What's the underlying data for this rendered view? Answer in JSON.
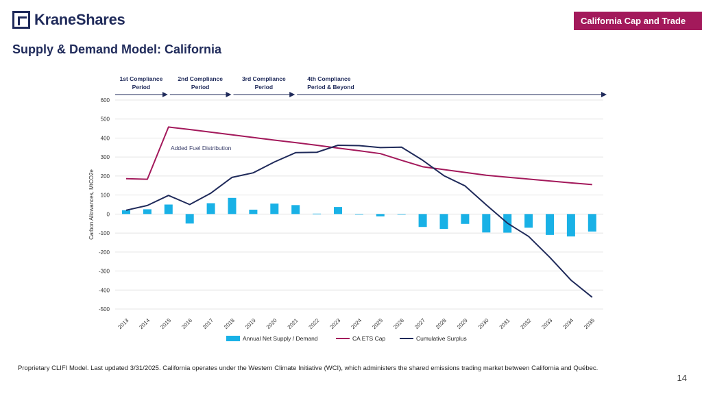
{
  "header": {
    "logo_text": "KraneShares",
    "badge": "California Cap and Trade",
    "title": "Supply & Demand Model: California"
  },
  "footnote": "Proprietary CLIFI Model. Last updated 3/31/2025. California operates under the Western Climate Initiative (WCI), which administers the shared emissions trading market between California and Québec.",
  "page_number": "14",
  "periods": [
    {
      "lines": [
        "1st Compliance",
        "Period"
      ],
      "start": 2013,
      "end": 2015
    },
    {
      "lines": [
        "2nd Compliance",
        "Period"
      ],
      "start": 2015,
      "end": 2018
    },
    {
      "lines": [
        "3rd Compliance",
        "Period"
      ],
      "start": 2018,
      "end": 2021
    },
    {
      "lines": [
        "4th Compliance",
        "Period & Beyond"
      ],
      "start": 2021,
      "end": 2035
    }
  ],
  "chart_data": {
    "type": "bar+line",
    "ylabel": "Carbon Allowances, MtCO2e",
    "ylim": [
      -500,
      600
    ],
    "yticks": [
      600,
      500,
      400,
      300,
      200,
      100,
      0,
      -100,
      -200,
      -300,
      -400,
      -500
    ],
    "categories": [
      "2013",
      "2014",
      "2015",
      "2016",
      "2017",
      "2018",
      "2019",
      "2020",
      "2021",
      "2022",
      "2023",
      "2024",
      "2025",
      "2026",
      "2027",
      "2028",
      "2029",
      "2030",
      "2031",
      "2032",
      "2033",
      "2034",
      "2035"
    ],
    "annotation": "Added Fuel Distribution",
    "series": [
      {
        "name": "Annual Net Supply / Demand",
        "type": "bar",
        "color": "#19b1e6",
        "values": [
          20,
          25,
          50,
          -50,
          57,
          85,
          23,
          55,
          47,
          2,
          37,
          -2,
          -12,
          0,
          -68,
          -78,
          -52,
          -97,
          -98,
          -72,
          -110,
          -118,
          -92
        ]
      },
      {
        "name": "CA ETS Cap",
        "type": "line",
        "color": "#a3195b",
        "values": [
          186,
          183,
          458,
          445,
          431,
          417,
          403,
          389,
          376,
          362,
          347,
          333,
          318,
          283,
          249,
          234,
          219,
          204,
          194,
          184,
          174,
          164,
          155
        ]
      },
      {
        "name": "Cumulative Surplus",
        "type": "line",
        "color": "#1f2a5a",
        "values": [
          20,
          45,
          98,
          50,
          110,
          193,
          217,
          274,
          323,
          325,
          362,
          360,
          350,
          352,
          283,
          202,
          148,
          48,
          -48,
          -118,
          -228,
          -348,
          -438
        ]
      }
    ]
  }
}
